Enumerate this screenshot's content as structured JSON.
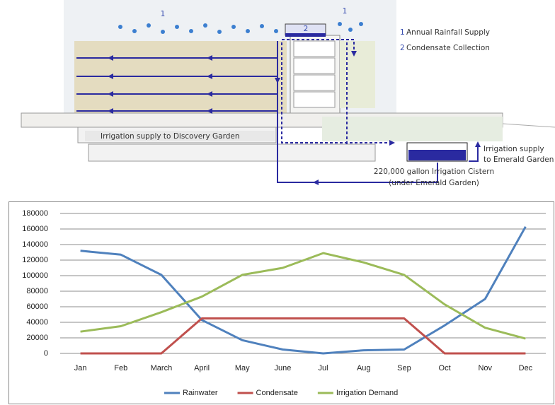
{
  "diagram": {
    "rain_markers": [
      "1",
      "1"
    ],
    "condensate_marker": "2",
    "legend": [
      {
        "number": "1",
        "label": "Annual Rainfall Supply"
      },
      {
        "number": "2",
        "label": "Condensate Collection"
      }
    ],
    "discovery_label": "Irrigation supply to Discovery Garden",
    "emerald_label": [
      "Irrigation supply",
      "to Emerald Garden"
    ],
    "cistern_label": [
      "220,000 gallon Irrigation Cistern",
      "(under Emerald Garden)"
    ]
  },
  "chart_data": {
    "type": "line",
    "categories": [
      "Jan",
      "Feb",
      "March",
      "April",
      "May",
      "June",
      "Jul",
      "Aug",
      "Sep",
      "Oct",
      "Nov",
      "Dec"
    ],
    "series": [
      {
        "name": "Rainwater",
        "color": "#4f81bd",
        "values": [
          132000,
          127000,
          101000,
          43000,
          17000,
          5000,
          0,
          4000,
          5000,
          36000,
          70000,
          163000
        ]
      },
      {
        "name": "Condensate",
        "color": "#c0504d",
        "values": [
          0,
          0,
          0,
          45000,
          45000,
          45000,
          45000,
          45000,
          45000,
          0,
          0,
          0
        ]
      },
      {
        "name": "Irrigation Demand",
        "color": "#9bbb59",
        "values": [
          28000,
          35000,
          53000,
          73000,
          101000,
          110000,
          129000,
          117000,
          101000,
          63000,
          33000,
          19000
        ]
      }
    ],
    "ylim": [
      0,
      180000
    ],
    "yticks": [
      0,
      20000,
      40000,
      60000,
      80000,
      100000,
      120000,
      140000,
      160000,
      180000
    ],
    "grid": true,
    "legend": "bottom"
  }
}
